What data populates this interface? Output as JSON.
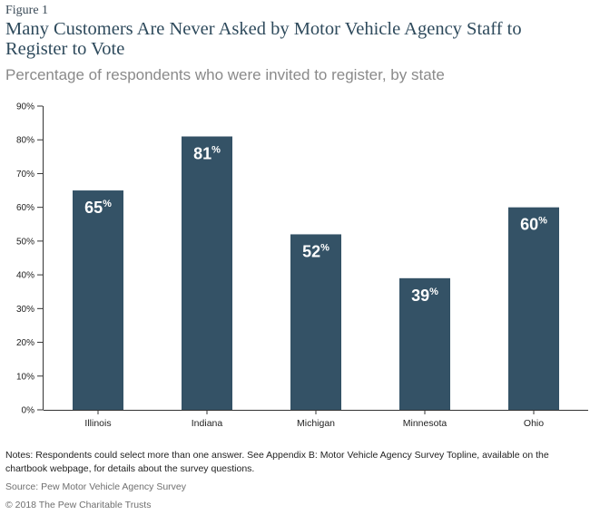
{
  "figure_label": "Figure 1",
  "title": "Many Customers Are Never Asked by Motor Vehicle Agency Staff to Register to Vote",
  "subtitle": "Percentage of respondents who were invited to register, by state",
  "notes": "Notes: Respondents could select more than one answer. See Appendix B: Motor Vehicle Agency Survey Topline, available on the chartbook webpage, for details about the survey questions.",
  "source": "Source: Pew Motor Vehicle Agency Survey",
  "copyright": "© 2018 The Pew Charitable Trusts",
  "colors": {
    "bar": "#345266",
    "label": "#ffffff",
    "axis": "#333333"
  },
  "chart_data": {
    "type": "bar",
    "categories": [
      "Illinois",
      "Indiana",
      "Michigan",
      "Minnesota",
      "Ohio"
    ],
    "values": [
      65,
      81,
      52,
      39,
      60
    ],
    "value_labels": [
      "65",
      "81",
      "52",
      "39",
      "60"
    ],
    "value_suffix": "%",
    "ylim": [
      0,
      90
    ],
    "yticks": [
      0,
      10,
      20,
      30,
      40,
      50,
      60,
      70,
      80,
      90
    ],
    "ytick_labels": [
      "0%",
      "10%",
      "20%",
      "30%",
      "40%",
      "50%",
      "60%",
      "70%",
      "80%",
      "90%"
    ],
    "grid": false
  }
}
